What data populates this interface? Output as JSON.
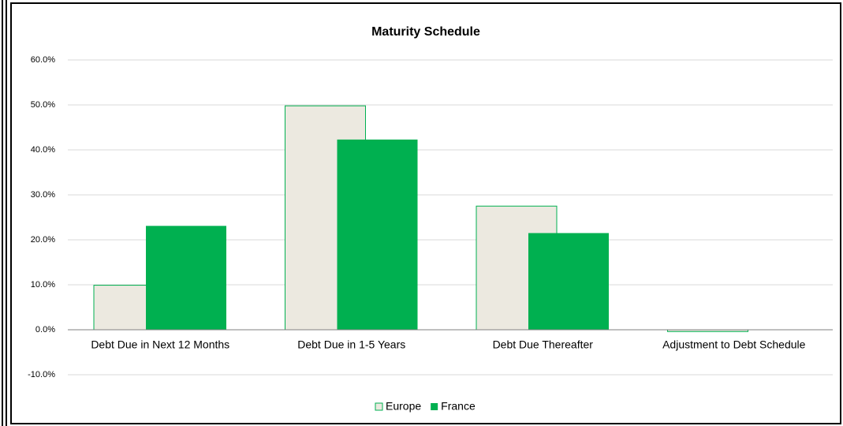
{
  "chart_data": {
    "type": "bar",
    "title": "Maturity Schedule",
    "categories": [
      "Debt Due in Next 12 Months",
      "Debt Due in 1-5 Years",
      "Debt Due Thereafter",
      "Adjustment to Debt Schedule"
    ],
    "series": [
      {
        "name": "Europe",
        "color": "#ece9e0",
        "edge_color": "#00b050",
        "values": [
          9.9,
          49.8,
          27.5,
          -0.4
        ]
      },
      {
        "name": "France",
        "color": "#00b050",
        "values": [
          23.1,
          42.3,
          21.5,
          0
        ]
      }
    ],
    "ylim": [
      -10,
      60
    ],
    "yticks": [
      {
        "value": -10,
        "label": "-10.0%"
      },
      {
        "value": 0,
        "label": "0.0%"
      },
      {
        "value": 10,
        "label": "10.0%"
      },
      {
        "value": 20,
        "label": "20.0%"
      },
      {
        "value": 30,
        "label": "30.0%"
      },
      {
        "value": 40,
        "label": "40.0%"
      },
      {
        "value": 50,
        "label": "50.0%"
      },
      {
        "value": 60,
        "label": "60.0%"
      }
    ],
    "grid": true,
    "legend": "bottom"
  }
}
